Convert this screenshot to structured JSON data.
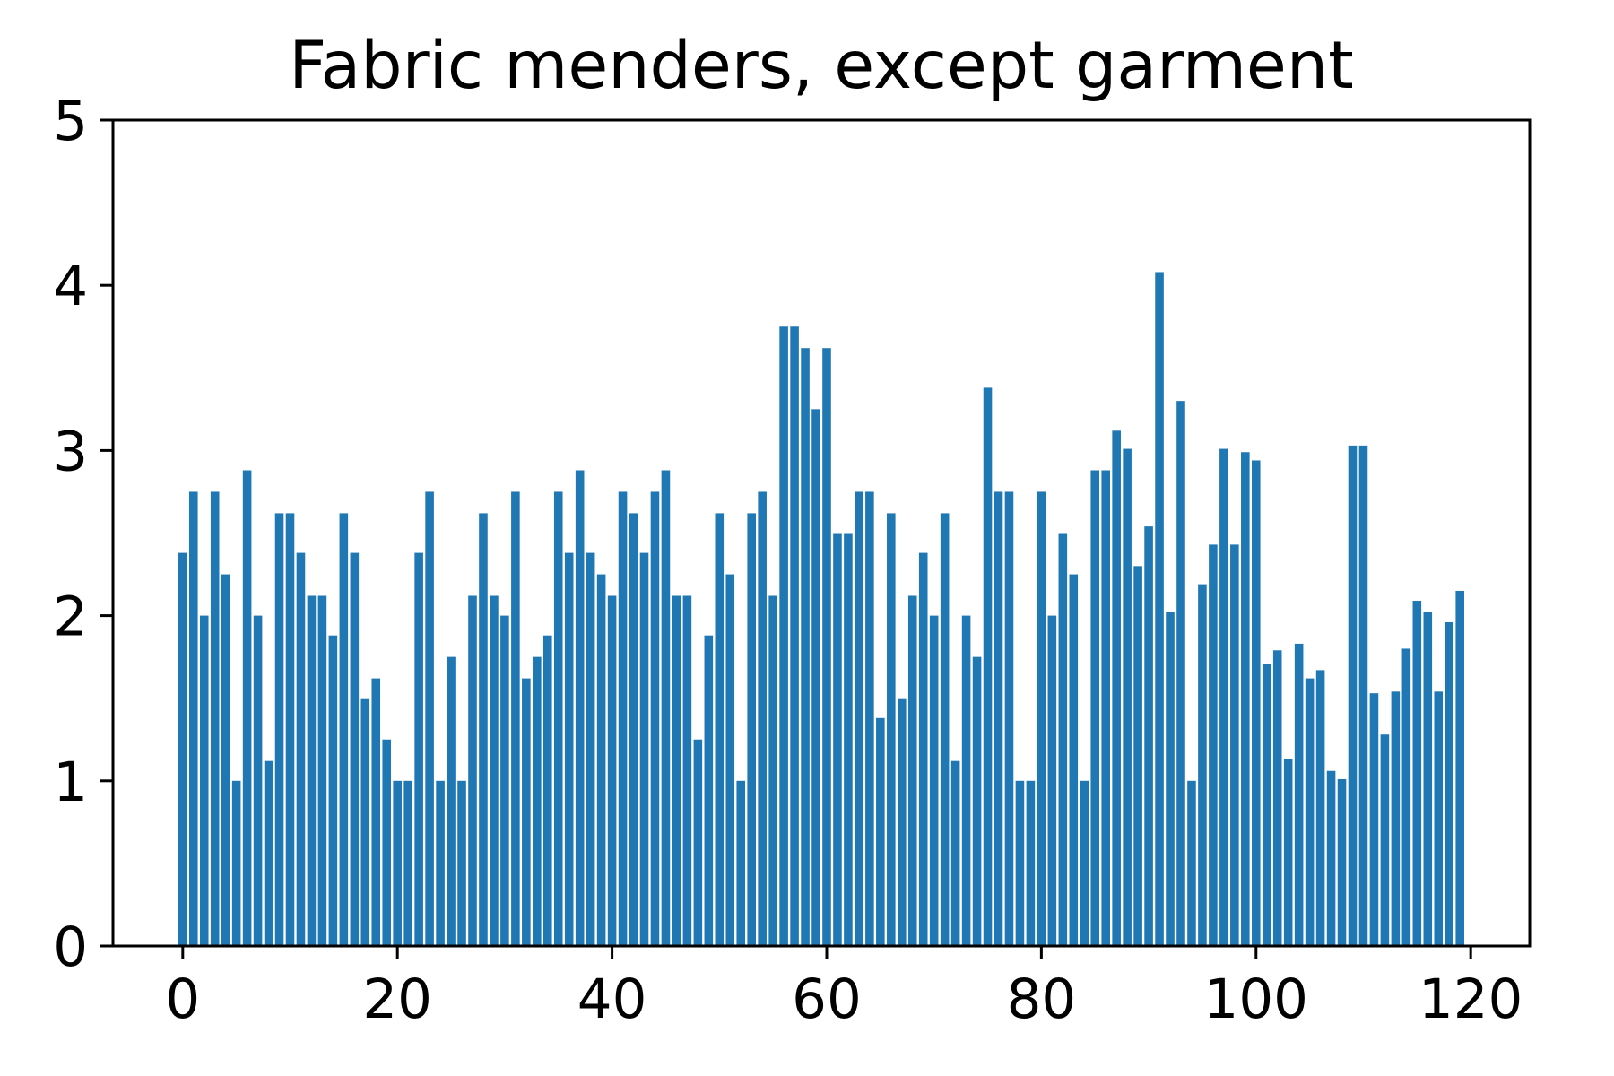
{
  "chart_data": {
    "type": "bar",
    "title": "Fabric menders, except garment",
    "xlabel": "",
    "ylabel": "",
    "xlim": [
      -6.5,
      125.5
    ],
    "ylim": [
      0,
      5
    ],
    "xticks": [
      0,
      20,
      40,
      60,
      80,
      100,
      120
    ],
    "yticks": [
      0,
      1,
      2,
      3,
      4,
      5
    ],
    "grid": false,
    "colors": {
      "bar": "#1f77b4"
    },
    "x": [
      0,
      1,
      2,
      3,
      4,
      5,
      6,
      7,
      8,
      9,
      10,
      11,
      12,
      13,
      14,
      15,
      16,
      17,
      18,
      19,
      20,
      21,
      22,
      23,
      24,
      25,
      26,
      27,
      28,
      29,
      30,
      31,
      32,
      33,
      34,
      35,
      36,
      37,
      38,
      39,
      40,
      41,
      42,
      43,
      44,
      45,
      46,
      47,
      48,
      49,
      50,
      51,
      52,
      53,
      54,
      55,
      56,
      57,
      58,
      59,
      60,
      61,
      62,
      63,
      64,
      65,
      66,
      67,
      68,
      69,
      70,
      71,
      72,
      73,
      74,
      75,
      76,
      77,
      78,
      79,
      80,
      81,
      82,
      83,
      84,
      85,
      86,
      87,
      88,
      89,
      90,
      91,
      92,
      93,
      94,
      95,
      96,
      97,
      98,
      99,
      100,
      101,
      102,
      103,
      104,
      105,
      106,
      107,
      108,
      109,
      110,
      111,
      112,
      113,
      114,
      115,
      116,
      117,
      118,
      119
    ],
    "values": [
      2.38,
      2.75,
      2.0,
      2.75,
      2.25,
      1.0,
      2.88,
      2.0,
      1.12,
      2.62,
      2.62,
      2.38,
      2.12,
      2.12,
      1.88,
      2.62,
      2.38,
      1.5,
      1.62,
      1.25,
      1.0,
      1.0,
      2.38,
      2.75,
      1.0,
      1.75,
      1.0,
      2.12,
      2.62,
      2.12,
      2.0,
      2.75,
      1.62,
      1.75,
      1.88,
      2.75,
      2.38,
      2.88,
      2.38,
      2.25,
      2.12,
      2.75,
      2.62,
      2.38,
      2.75,
      2.88,
      2.12,
      2.12,
      1.25,
      1.88,
      2.62,
      2.25,
      1.0,
      2.62,
      2.75,
      2.12,
      3.75,
      3.75,
      3.62,
      3.25,
      3.62,
      2.5,
      2.5,
      2.75,
      2.75,
      1.38,
      2.62,
      1.5,
      2.12,
      2.38,
      2.0,
      2.62,
      1.12,
      2.0,
      1.75,
      3.38,
      2.75,
      2.75,
      1.0,
      1.0,
      2.75,
      2.0,
      2.5,
      2.25,
      1.0,
      2.88,
      2.88,
      3.12,
      3.01,
      2.3,
      2.54,
      4.08,
      2.02,
      3.3,
      1.0,
      2.19,
      2.43,
      3.01,
      2.43,
      2.99,
      2.94,
      1.71,
      1.79,
      1.13,
      1.83,
      1.62,
      1.67,
      1.06,
      1.01,
      3.03,
      3.03,
      1.53,
      1.28,
      1.54,
      1.8,
      2.09,
      2.02,
      1.54,
      1.96,
      2.15
    ]
  }
}
